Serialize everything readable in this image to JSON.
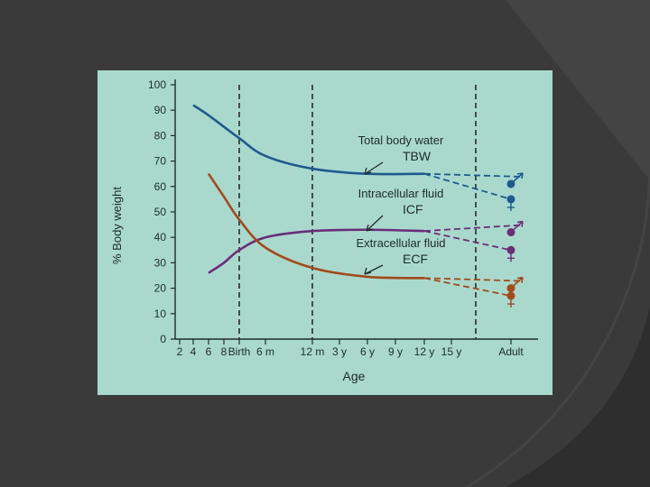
{
  "slide": {
    "background_color": "#3a3a3a",
    "panel_color": "#a9d9cd"
  },
  "chart_data": {
    "type": "line",
    "xlabel": "Age",
    "ylabel": "% Body weight",
    "ylim": [
      0,
      100
    ],
    "yticks": [
      0,
      10,
      20,
      30,
      40,
      50,
      60,
      70,
      80,
      90,
      100
    ],
    "xticks": [
      "2",
      "4",
      "6",
      "8",
      "Birth",
      "6 m",
      "12 m",
      "3 y",
      "6 y",
      "9 y",
      "12 y",
      "15 y",
      "Adult"
    ],
    "dashed_dividers_at": [
      "Birth",
      "12 m",
      "15 y"
    ],
    "grid": false,
    "series": [
      {
        "name": "Total body water",
        "abbr": "TBW",
        "color": "#1f5a8e",
        "points": [
          [
            "4",
            92
          ],
          [
            "6",
            88
          ],
          [
            "Birth",
            79
          ],
          [
            "6 m",
            72
          ],
          [
            "12 m",
            67
          ],
          [
            "6 y",
            65
          ],
          [
            "12 y",
            65
          ]
        ],
        "adult_trend": [
          [
            "12 y",
            65
          ],
          [
            "Adult",
            60
          ]
        ],
        "adult_male": 61,
        "adult_female": 55
      },
      {
        "name": "Intracellular fluid",
        "abbr": "ICF",
        "color": "#6b2c7a",
        "points": [
          [
            "6",
            26
          ],
          [
            "8",
            30
          ],
          [
            "Birth",
            35
          ],
          [
            "6 m",
            40
          ],
          [
            "12 m",
            42.5
          ],
          [
            "6 y",
            43
          ],
          [
            "12 y",
            42.5
          ]
        ],
        "adult_trend": [
          [
            "12 y",
            42.5
          ],
          [
            "Adult",
            43
          ]
        ],
        "adult_male": 42,
        "adult_female": 35
      },
      {
        "name": "Extracellular fluid",
        "abbr": "ECF",
        "color": "#a34a1c",
        "points": [
          [
            "6",
            65
          ],
          [
            "8",
            56
          ],
          [
            "Birth",
            47
          ],
          [
            "6 m",
            36
          ],
          [
            "12 m",
            28
          ],
          [
            "6 y",
            24.5
          ],
          [
            "12 y",
            24
          ]
        ],
        "adult_trend": [
          [
            "12 y",
            24
          ],
          [
            "Adult",
            19
          ]
        ],
        "adult_male": 20,
        "adult_female": 17
      }
    ],
    "annotations": [
      {
        "lines": [
          "Total body water",
          "TBW"
        ],
        "target": "Total body water"
      },
      {
        "lines": [
          "Intracellular fluid",
          "ICF"
        ],
        "target": "Intracellular fluid"
      },
      {
        "lines": [
          "Extracellular fluid",
          "ECF"
        ],
        "target": "Extracellular fluid"
      }
    ]
  }
}
